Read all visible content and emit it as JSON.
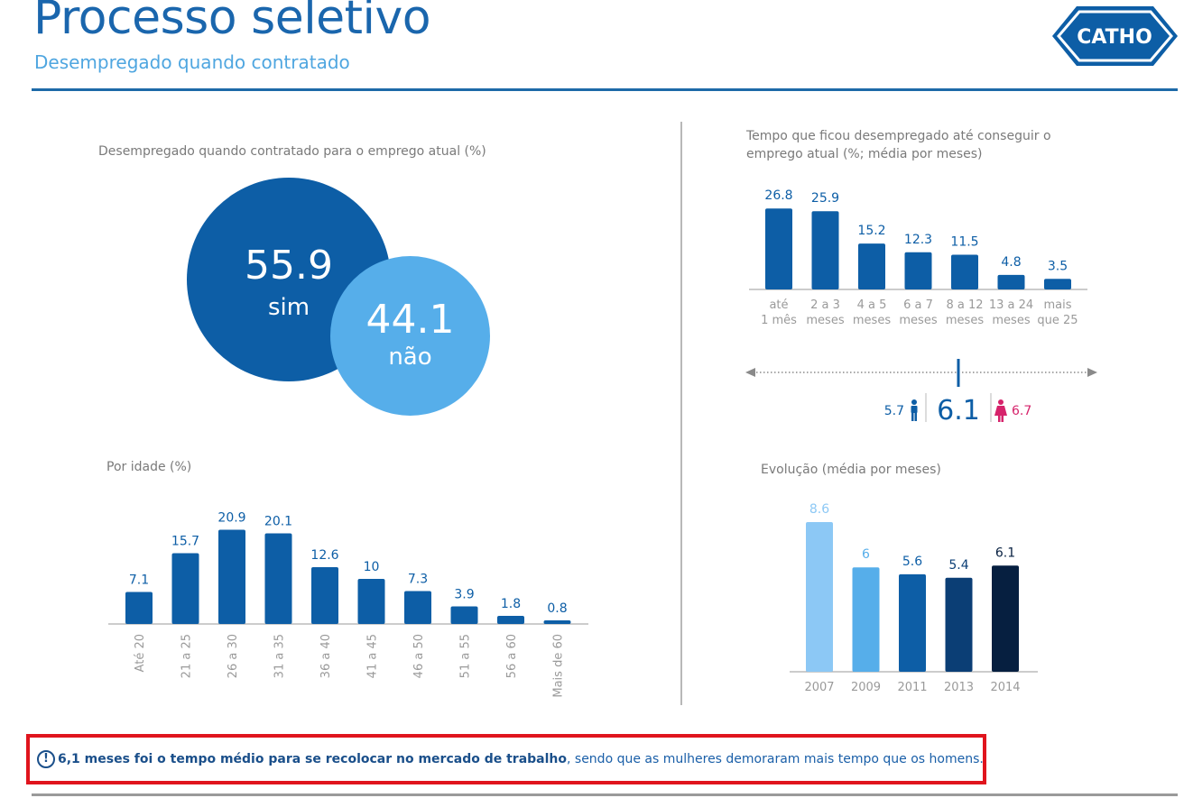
{
  "header": {
    "title": "Processo seletivo",
    "subtitle": "Desempregado quando contratado",
    "logo_text": "CATHO"
  },
  "colors": {
    "primary": "#0d5ea6",
    "light": "#56aeea",
    "title": "#1a66ad",
    "female": "#d6236b",
    "highlight_border": "#e0141d"
  },
  "chart_data": [
    {
      "type": "bubble",
      "title": "Desempregado quando contratado para o emprego atual (%)",
      "categories": [
        "sim",
        "não"
      ],
      "values": [
        "55.9",
        "44.1"
      ]
    },
    {
      "type": "bar",
      "title": "Por idade (%)",
      "categories": [
        "Até 20",
        "21 a 25",
        "26 a 30",
        "31 a 35",
        "36 a 40",
        "41 a 45",
        "46 a 50",
        "51 a 55",
        "56 a 60",
        "Mais de 60"
      ],
      "values": [
        7.1,
        15.7,
        20.9,
        20.1,
        12.6,
        10,
        7.3,
        3.9,
        1.8,
        0.8
      ],
      "labels": [
        "7.1",
        "15.7",
        "20.9",
        "20.1",
        "12.6",
        "10",
        "7.3",
        "3.9",
        "1.8",
        "0.8"
      ]
    },
    {
      "type": "bar",
      "title": "Tempo que ficou desempregado até conseguir o emprego atual (%; média por meses)",
      "categories": [
        [
          "até",
          "1 mês"
        ],
        [
          "2 a 3",
          "meses"
        ],
        [
          "4 a 5",
          "meses"
        ],
        [
          "6 a 7",
          "meses"
        ],
        [
          "8 a 12",
          "meses"
        ],
        [
          "13 a 24",
          "meses"
        ],
        [
          "mais",
          "que 25"
        ]
      ],
      "values": [
        26.8,
        25.9,
        15.2,
        12.3,
        11.5,
        4.8,
        3.5
      ],
      "labels": [
        "26.8",
        "25.9",
        "15.2",
        "12.3",
        "11.5",
        "4.8",
        "3.5"
      ],
      "average": {
        "overall": "6.1",
        "men": "5.7",
        "women": "6.7"
      }
    },
    {
      "type": "bar",
      "title": "Evolução (média por meses)",
      "categories": [
        "2007",
        "2009",
        "2011",
        "2013",
        "2014"
      ],
      "values": [
        8.6,
        6,
        5.6,
        5.4,
        6.1
      ],
      "labels": [
        "8.6",
        "6",
        "5.6",
        "5.4",
        "6.1"
      ],
      "colors": [
        "#8cc8f5",
        "#56aeea",
        "#0d5ea6",
        "#0b3e75",
        "#061f40"
      ],
      "label_colors": [
        "#8cc8f5",
        "#56aeea",
        "#0d5ea6",
        "#0b3e75",
        "#061f40"
      ]
    }
  ],
  "note": {
    "icon": "exclamation-circle-icon",
    "bold": "6,1 meses foi o tempo médio para se recolocar no mercado de trabalho",
    "rest": ", sendo que as mulheres demoraram mais tempo que os homens."
  }
}
